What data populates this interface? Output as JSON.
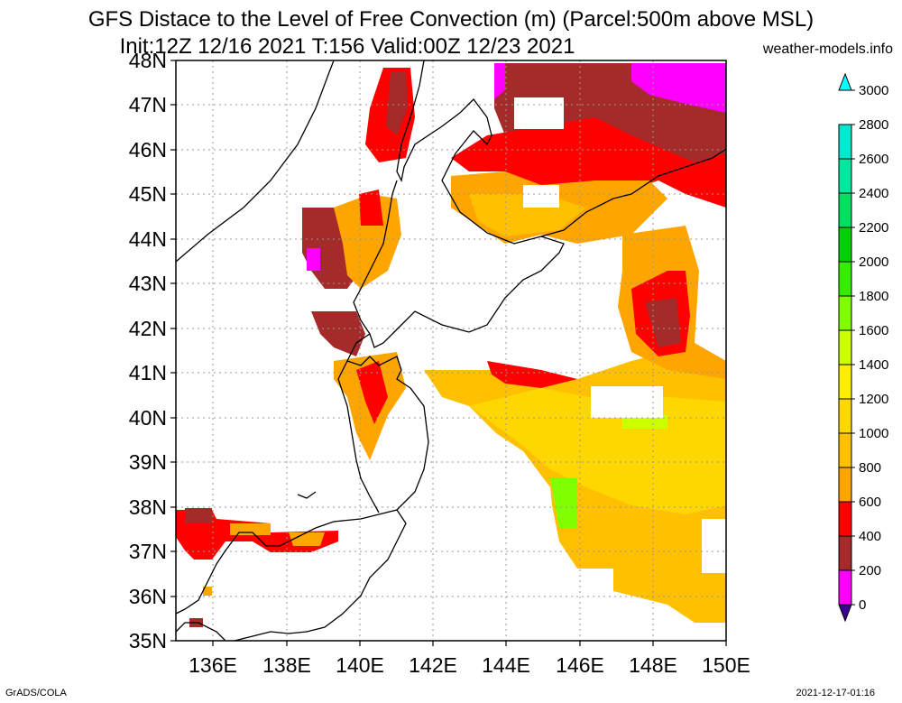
{
  "title_line1": "GFS Distace to the Level of Free Convection (m) (Parcel:500m above MSL)",
  "title_line2": "Init:12Z 12/16 2021 T:156 Valid:00Z 12/23 2021",
  "site": "weather-models.info",
  "footer_left": "GrADS/COLA",
  "footer_right": "2021-12-17-01:16",
  "lat_labels": [
    "48N",
    "47N",
    "46N",
    "45N",
    "44N",
    "43N",
    "42N",
    "41N",
    "40N",
    "39N",
    "38N",
    "37N",
    "36N",
    "35N"
  ],
  "lon_labels": [
    "136E",
    "138E",
    "140E",
    "142E",
    "144E",
    "146E",
    "148E",
    "150E"
  ],
  "colorbar": {
    "levels": [
      "0",
      "200",
      "400",
      "600",
      "800",
      "1000",
      "1200",
      "1400",
      "1600",
      "1800",
      "2000",
      "2200",
      "2400",
      "2600",
      "2800",
      "3000"
    ],
    "colors": [
      "#3c0090",
      "#ff00ff",
      "#a52a2a",
      "#ff0000",
      "#ffa500",
      "#ffc000",
      "#ffd700",
      "#ffee00",
      "#ccff00",
      "#80ff00",
      "#33ee00",
      "#00d000",
      "#00e060",
      "#00e8a0",
      "#00e8d0",
      "#00ffff"
    ]
  }
}
